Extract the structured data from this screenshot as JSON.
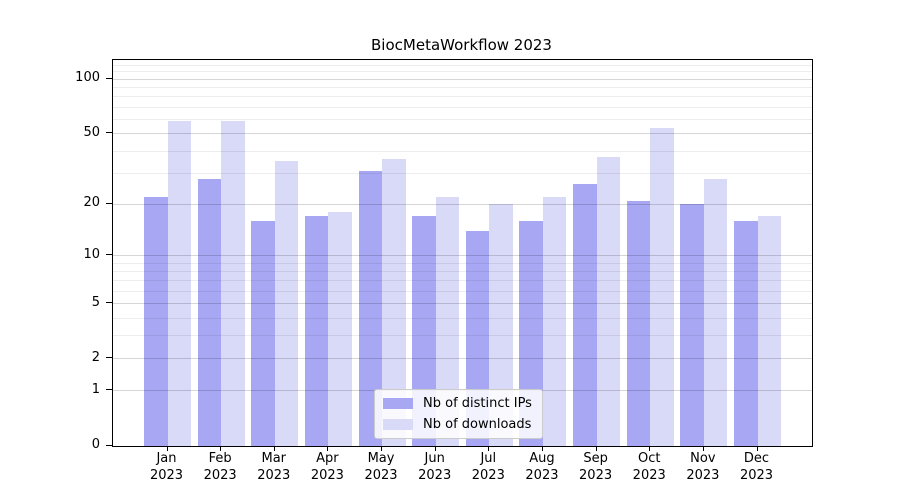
{
  "chart_data": {
    "type": "bar",
    "title": "BiocMetaWorkflow 2023",
    "categories": [
      "Jan",
      "Feb",
      "Mar",
      "Apr",
      "May",
      "Jun",
      "Jul",
      "Aug",
      "Sep",
      "Oct",
      "Nov",
      "Dec"
    ],
    "category_year": "2023",
    "series": [
      {
        "name": "Nb of distinct IPs",
        "color": "#a7a7f3",
        "values": [
          22,
          28,
          16,
          17,
          31,
          17,
          14,
          16,
          26,
          21,
          20,
          16
        ]
      },
      {
        "name": "Nb of downloads",
        "color": "#d9d9f8",
        "values": [
          59,
          59,
          35,
          18,
          36,
          22,
          20,
          22,
          37,
          54,
          28,
          17
        ]
      }
    ],
    "xlabel": "",
    "ylabel": "",
    "yscale": "log1p",
    "yticks": [
      0,
      1,
      2,
      5,
      10,
      20,
      50,
      100
    ],
    "minor_yticks": [
      3,
      4,
      6,
      7,
      8,
      9,
      30,
      40,
      60,
      70,
      80,
      90,
      110,
      120
    ],
    "ylim": [
      0,
      128
    ],
    "grid": true,
    "legend_position": "lower center"
  }
}
